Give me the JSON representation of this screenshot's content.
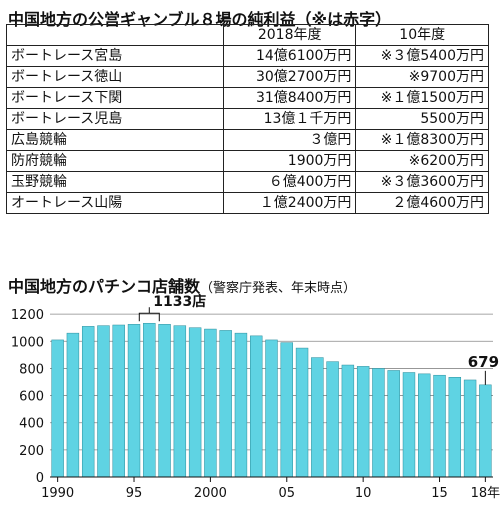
{
  "table": {
    "title": "中国地方の公営ギャンブル８場の純利益（※は赤字）",
    "columns": [
      "",
      "2018年度",
      "10年度"
    ],
    "rows": [
      {
        "name": "ボートレース宮島",
        "y2018": "14億6100万円",
        "y2010": "※３億5400万円"
      },
      {
        "name": "ボートレース徳山",
        "y2018": "30億2700万円",
        "y2010": "※9700万円"
      },
      {
        "name": "ボートレース下関",
        "y2018": "31億8400万円",
        "y2010": "※１億1500万円"
      },
      {
        "name": "ボートレース児島",
        "y2018": "13億１千万円",
        "y2010": "5500万円"
      },
      {
        "name": "広島競輪",
        "y2018": "３億円",
        "y2010": "※１億8300万円"
      },
      {
        "name": "防府競輪",
        "y2018": "1900万円",
        "y2010": "※6200万円"
      },
      {
        "name": "玉野競輪",
        "y2018": "６億400万円",
        "y2010": "※３億3600万円"
      },
      {
        "name": "オートレース山陽",
        "y2018": "１億2400万円",
        "y2010": "２億4600万円"
      }
    ]
  },
  "chart_data": {
    "type": "bar",
    "title": "中国地方のパチンコ店舗数",
    "subtitle": "（警察庁発表、年末時点）",
    "x": [
      1990,
      1991,
      1992,
      1993,
      1994,
      1995,
      1996,
      1997,
      1998,
      1999,
      2000,
      2001,
      2002,
      2003,
      2004,
      2005,
      2006,
      2007,
      2008,
      2009,
      2010,
      2011,
      2012,
      2013,
      2014,
      2015,
      2016,
      2017,
      2018
    ],
    "values": [
      1010,
      1060,
      1110,
      1115,
      1120,
      1125,
      1133,
      1125,
      1115,
      1100,
      1090,
      1080,
      1060,
      1040,
      1010,
      990,
      950,
      880,
      850,
      825,
      815,
      800,
      785,
      770,
      760,
      750,
      735,
      715,
      679
    ],
    "x_tick_labels": [
      {
        "x": 1990,
        "label": "1990"
      },
      {
        "x": 1995,
        "label": "95"
      },
      {
        "x": 2000,
        "label": "2000"
      },
      {
        "x": 2005,
        "label": "05"
      },
      {
        "x": 2010,
        "label": "10"
      },
      {
        "x": 2015,
        "label": "15"
      },
      {
        "x": 2018,
        "label": "18年"
      }
    ],
    "y_ticks": [
      0,
      200,
      400,
      600,
      800,
      1000,
      1200
    ],
    "ylim": [
      0,
      1260
    ],
    "annotations": [
      {
        "x": 1996,
        "label": "1133店"
      },
      {
        "x": 2018,
        "label": "679"
      }
    ],
    "grid": true,
    "bar_color": "#5fd3e3"
  }
}
